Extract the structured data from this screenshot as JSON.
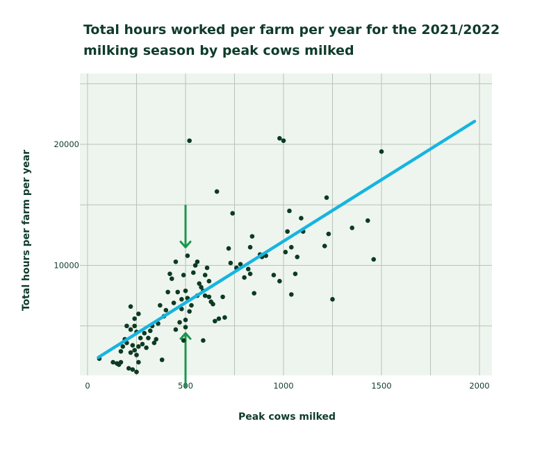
{
  "chart_data": {
    "type": "scatter",
    "title": "Total hours worked per farm per year for the 2021/2022 milking season by peak cows milked",
    "xlabel": "Peak cows milked",
    "ylabel": "Total hours per farm per year",
    "xlim": [
      0,
      2000
    ],
    "ylim": [
      0,
      25000
    ],
    "xticks": [
      0,
      500,
      1000,
      1500,
      2000
    ],
    "yticks": [
      10000,
      20000
    ],
    "grid": true,
    "colors": {
      "background": "#eef5ee",
      "grid": "#b8c2b8",
      "points": "#0c3a22",
      "trend": "#16b4e0",
      "arrows": "#1a9650",
      "text": "#0f3b2a"
    },
    "trendline": {
      "x": [
        55,
        1975
      ],
      "y": [
        2400,
        21900
      ]
    },
    "annotations": [
      {
        "type": "arrow-down",
        "x": 500,
        "y_from": 15000,
        "y_to": 11500
      },
      {
        "type": "arrow-up",
        "x": 500,
        "y_from": -100,
        "y_to": 4400
      }
    ],
    "points": [
      [
        60,
        2300
      ],
      [
        130,
        2000
      ],
      [
        150,
        1900
      ],
      [
        160,
        1800
      ],
      [
        170,
        2000
      ],
      [
        170,
        2900
      ],
      [
        180,
        3300
      ],
      [
        190,
        3900
      ],
      [
        200,
        3600
      ],
      [
        210,
        1500
      ],
      [
        220,
        2800
      ],
      [
        230,
        3400
      ],
      [
        240,
        3000
      ],
      [
        230,
        1400
      ],
      [
        250,
        1200
      ],
      [
        260,
        2000
      ],
      [
        250,
        2600
      ],
      [
        260,
        3300
      ],
      [
        270,
        4000
      ],
      [
        280,
        3500
      ],
      [
        290,
        4400
      ],
      [
        300,
        3200
      ],
      [
        310,
        4000
      ],
      [
        320,
        4600
      ],
      [
        330,
        5000
      ],
      [
        340,
        3600
      ],
      [
        350,
        3900
      ],
      [
        360,
        5200
      ],
      [
        220,
        6600
      ],
      [
        240,
        5600
      ],
      [
        250,
        4500
      ],
      [
        260,
        6000
      ],
      [
        200,
        5000
      ],
      [
        220,
        4700
      ],
      [
        240,
        5000
      ],
      [
        370,
        6700
      ],
      [
        380,
        2200
      ],
      [
        390,
        5800
      ],
      [
        400,
        6300
      ],
      [
        410,
        7800
      ],
      [
        420,
        9300
      ],
      [
        430,
        8900
      ],
      [
        440,
        6900
      ],
      [
        450,
        4700
      ],
      [
        450,
        10300
      ],
      [
        460,
        7800
      ],
      [
        470,
        5300
      ],
      [
        480,
        7200
      ],
      [
        480,
        6400
      ],
      [
        490,
        3800
      ],
      [
        490,
        9200
      ],
      [
        500,
        5500
      ],
      [
        500,
        4900
      ],
      [
        500,
        7900
      ],
      [
        510,
        7300
      ],
      [
        510,
        10800
      ],
      [
        520,
        6200
      ],
      [
        530,
        6700
      ],
      [
        540,
        9400
      ],
      [
        550,
        10000
      ],
      [
        560,
        7500
      ],
      [
        570,
        8500
      ],
      [
        580,
        8200
      ],
      [
        590,
        3800
      ],
      [
        590,
        7900
      ],
      [
        600,
        7500
      ],
      [
        600,
        9200
      ],
      [
        610,
        9800
      ],
      [
        620,
        7400
      ],
      [
        620,
        8700
      ],
      [
        630,
        7000
      ],
      [
        640,
        6800
      ],
      [
        650,
        5400
      ],
      [
        670,
        5600
      ],
      [
        690,
        7400
      ],
      [
        700,
        5700
      ],
      [
        720,
        11400
      ],
      [
        740,
        14300
      ],
      [
        730,
        10200
      ],
      [
        760,
        9800
      ],
      [
        780,
        10100
      ],
      [
        800,
        9000
      ],
      [
        820,
        9700
      ],
      [
        830,
        9300
      ],
      [
        830,
        11500
      ],
      [
        840,
        12400
      ],
      [
        850,
        7700
      ],
      [
        880,
        10900
      ],
      [
        890,
        10700
      ],
      [
        910,
        10800
      ],
      [
        950,
        9200
      ],
      [
        980,
        8700
      ],
      [
        1010,
        11100
      ],
      [
        1020,
        12800
      ],
      [
        1030,
        14500
      ],
      [
        1040,
        11500
      ],
      [
        1040,
        7600
      ],
      [
        1060,
        9300
      ],
      [
        1070,
        10700
      ],
      [
        1090,
        13900
      ],
      [
        1100,
        12800
      ],
      [
        1210,
        11600
      ],
      [
        1220,
        15600
      ],
      [
        1230,
        12600
      ],
      [
        1250,
        7200
      ],
      [
        1350,
        13100
      ],
      [
        1430,
        13700
      ],
      [
        1460,
        10500
      ],
      [
        520,
        20300
      ],
      [
        980,
        20500
      ],
      [
        1000,
        20300
      ],
      [
        1500,
        19400
      ],
      [
        660,
        16100
      ],
      [
        560,
        10300
      ]
    ]
  }
}
